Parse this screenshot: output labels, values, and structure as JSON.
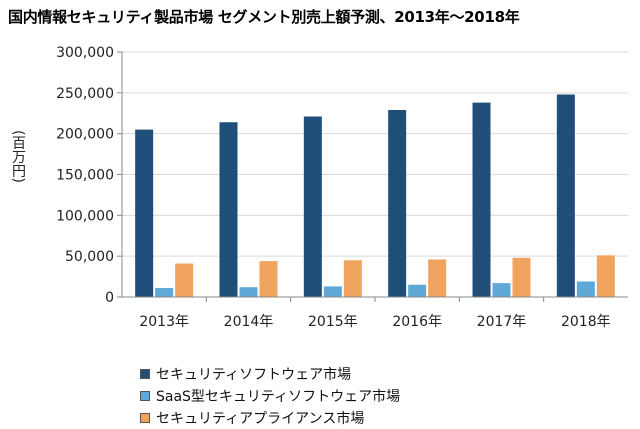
{
  "title": "国内情報セキュリティ製品市場 セグメント別売上額予測、2013年～2018年",
  "chart_data": {
    "type": "bar",
    "ylabel": "(百万円)",
    "xlabel": "",
    "ylim": [
      0,
      300000
    ],
    "yticks": [
      "0",
      "50,000",
      "100,000",
      "150,000",
      "200,000",
      "250,000",
      "300,000"
    ],
    "ytick_values": [
      0,
      50000,
      100000,
      150000,
      200000,
      250000,
      300000
    ],
    "grid": true,
    "categories": [
      "2013年",
      "2014年",
      "2015年",
      "2016年",
      "2017年",
      "2018年"
    ],
    "series": [
      {
        "name": "セキュリティソフトウェア市場",
        "color": "#1f4e79",
        "values": [
          205000,
          214000,
          221000,
          229000,
          238000,
          248000
        ]
      },
      {
        "name": "SaaS型セキュリティソフトウェア市場",
        "color": "#5fa8d8",
        "values": [
          11000,
          12000,
          13000,
          15000,
          17000,
          19000
        ]
      },
      {
        "name": "セキュリティアプライアンス市場",
        "color": "#f0a460",
        "values": [
          41000,
          44000,
          45000,
          46000,
          48000,
          51000
        ]
      }
    ],
    "legend_position": "bottom"
  }
}
